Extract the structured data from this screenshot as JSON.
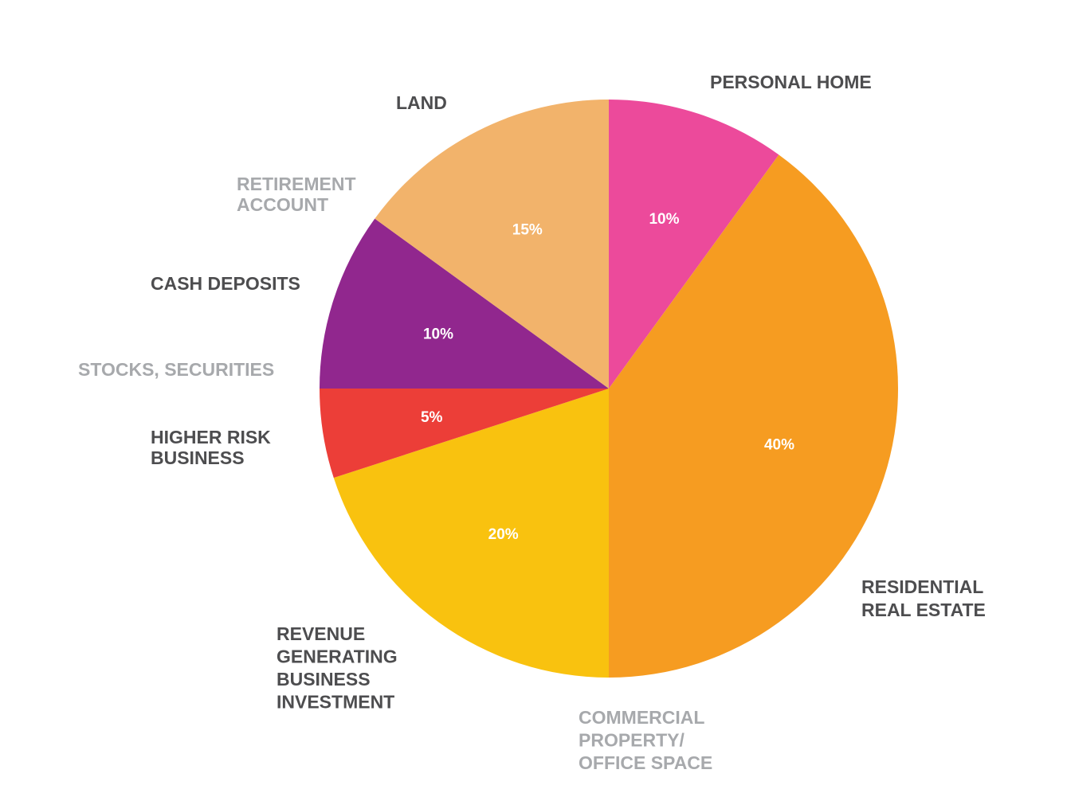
{
  "chart_data": {
    "type": "pie",
    "slices": [
      {
        "name": "PERSONAL HOME",
        "value": 10,
        "value_label": "10%",
        "color": "#ec4a9b"
      },
      {
        "name": "RESIDENTIAL REAL ESTATE",
        "value": 40,
        "value_label": "40%",
        "color": "#f69c21"
      },
      {
        "name": "REVENUE GENERATING BUSINESS INVESTMENT",
        "value": 20,
        "value_label": "20%",
        "color": "#f9c20f"
      },
      {
        "name": "HIGHER RISK BUSINESS",
        "value": 5,
        "value_label": "5%",
        "color": "#ec3e38"
      },
      {
        "name": "CASH DEPOSITS",
        "value": 10,
        "value_label": "10%",
        "color": "#91278e"
      },
      {
        "name": "LAND",
        "value": 15,
        "value_label": "15%",
        "color": "#f2b36b"
      }
    ],
    "category_labels": [
      {
        "lines": [
          "PERSONAL HOME"
        ],
        "style": "dark"
      },
      {
        "lines": [
          "LAND"
        ],
        "style": "dark"
      },
      {
        "lines": [
          "RETIREMENT",
          "ACCOUNT"
        ],
        "style": "grey"
      },
      {
        "lines": [
          "CASH DEPOSITS"
        ],
        "style": "dark"
      },
      {
        "lines": [
          "STOCKS, SECURITIES"
        ],
        "style": "grey"
      },
      {
        "lines": [
          "HIGHER RISK",
          "BUSINESS"
        ],
        "style": "dark"
      },
      {
        "lines": [
          "REVENUE",
          "GENERATING",
          "BUSINESS",
          "INVESTMENT"
        ],
        "style": "dark"
      },
      {
        "lines": [
          "COMMERCIAL",
          "PROPERTY/",
          "OFFICE SPACE"
        ],
        "style": "grey"
      },
      {
        "lines": [
          "RESIDENTIAL",
          "REAL ESTATE"
        ],
        "style": "dark"
      }
    ],
    "start": "top",
    "direction": "clockwise",
    "legend": "none"
  }
}
